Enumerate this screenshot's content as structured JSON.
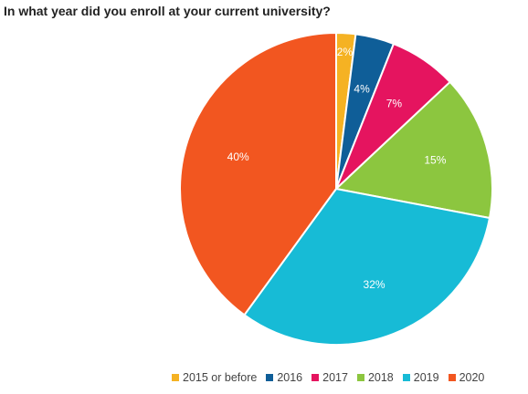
{
  "chart_data": {
    "type": "pie",
    "title": "In what year did you enroll at your current university?",
    "categories": [
      "2015 or before",
      "2016",
      "2017",
      "2018",
      "2019",
      "2020"
    ],
    "values": [
      2,
      4,
      7,
      15,
      32,
      40
    ],
    "slice_labels": [
      "2%",
      "4%",
      "7%",
      "15%",
      "32%",
      "40%"
    ],
    "colors": [
      "#f5b223",
      "#0f5e98",
      "#e5145f",
      "#8cc63f",
      "#17bbd6",
      "#f25620"
    ],
    "legend_position": "bottom-right",
    "start_angle": "top",
    "direction": "clockwise"
  }
}
